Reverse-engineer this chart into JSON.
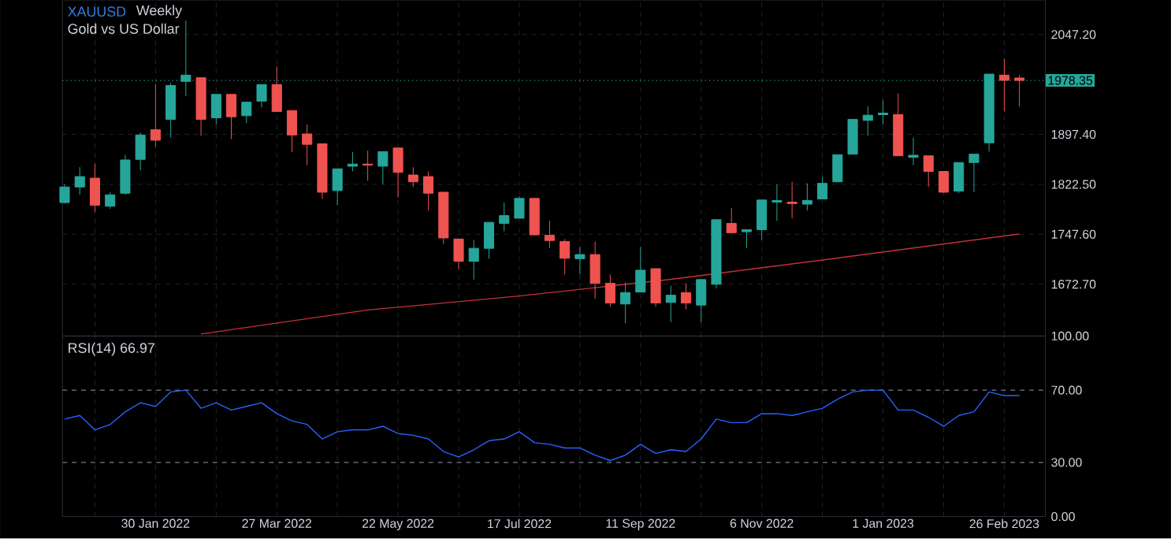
{
  "chart_data": [
    {
      "type": "candlestick",
      "title": "XAUUSD",
      "subtitle": "Gold vs US Dollar",
      "annotations": [
        "Weekly"
      ],
      "x": [
        "2021-12-19",
        "2021-12-26",
        "2022-01-02",
        "2022-01-09",
        "2022-01-16",
        "2022-01-23",
        "2022-01-30",
        "2022-02-06",
        "2022-02-13",
        "2022-02-20",
        "2022-02-27",
        "2022-03-06",
        "2022-03-13",
        "2022-03-20",
        "2022-03-27",
        "2022-04-03",
        "2022-04-10",
        "2022-04-17",
        "2022-04-24",
        "2022-05-01",
        "2022-05-08",
        "2022-05-15",
        "2022-05-22",
        "2022-05-29",
        "2022-06-05",
        "2022-06-12",
        "2022-06-19",
        "2022-06-26",
        "2022-07-03",
        "2022-07-10",
        "2022-07-17",
        "2022-07-24",
        "2022-07-31",
        "2022-08-07",
        "2022-08-14",
        "2022-08-21",
        "2022-08-28",
        "2022-09-04",
        "2022-09-11",
        "2022-09-18",
        "2022-09-25",
        "2022-10-02",
        "2022-10-09",
        "2022-10-16",
        "2022-10-23",
        "2022-10-30",
        "2022-11-06",
        "2022-11-13",
        "2022-11-20",
        "2022-11-27",
        "2022-12-04",
        "2022-12-11",
        "2022-12-18",
        "2022-12-25",
        "2023-01-01",
        "2023-01-08",
        "2023-01-15",
        "2023-01-22",
        "2023-01-29",
        "2023-02-05",
        "2023-02-12",
        "2023-02-19",
        "2023-02-26",
        "2023-03-05"
      ],
      "ohlc": [
        [
          1795.1,
          1822.4,
          1793.6,
          1818.5
        ],
        [
          1818.5,
          1848.2,
          1806.8,
          1834.1
        ],
        [
          1831.8,
          1853.6,
          1781.1,
          1791.2
        ],
        [
          1789.7,
          1810.7,
          1785.8,
          1806.8
        ],
        [
          1809.2,
          1866.9,
          1806.8,
          1859.1
        ],
        [
          1859.9,
          1900.4,
          1843.5,
          1896.5
        ],
        [
          1904.4,
          1973.0,
          1878.6,
          1888.7
        ],
        [
          1920.0,
          1974.6,
          1892.6,
          1970.7
        ],
        [
          1976.9,
          2068.2,
          1955.1,
          1986.3
        ],
        [
          1982.4,
          1982.4,
          1895.0,
          1920.0
        ],
        [
          1922.3,
          1957.4,
          1912.2,
          1957.4
        ],
        [
          1957.4,
          1957.4,
          1890.3,
          1923.9
        ],
        [
          1925.4,
          1945.7,
          1914.5,
          1945.7
        ],
        [
          1947.3,
          1972.2,
          1937.9,
          1972.2
        ],
        [
          1972.2,
          1999.5,
          1931.7,
          1931.7
        ],
        [
          1933.2,
          1933.2,
          1870.8,
          1896.5
        ],
        [
          1898.1,
          1912.2,
          1851.3,
          1882.5
        ],
        [
          1883.3,
          1883.3,
          1800.6,
          1810.7
        ],
        [
          1813.1,
          1845.8,
          1791.2,
          1845.8
        ],
        [
          1849.7,
          1870.8,
          1841.9,
          1852.9
        ],
        [
          1852.9,
          1873.1,
          1827.9,
          1851.3
        ],
        [
          1849.7,
          1871.6,
          1822.4,
          1871.6
        ],
        [
          1877.0,
          1877.0,
          1802.9,
          1840.4
        ],
        [
          1836.5,
          1848.2,
          1818.5,
          1826.3
        ],
        [
          1834.1,
          1841.9,
          1783.4,
          1809.2
        ],
        [
          1810.7,
          1810.7,
          1732.7,
          1742.1
        ],
        [
          1740.5,
          1740.5,
          1695.3,
          1707.0
        ],
        [
          1707.0,
          1739.0,
          1679.6,
          1726.5
        ],
        [
          1726.5,
          1765.5,
          1710.9,
          1765.5
        ],
        [
          1763.9,
          1795.1,
          1752.2,
          1775.6
        ],
        [
          1771.7,
          1804.5,
          1771.7,
          1801.4
        ],
        [
          1801.4,
          1801.4,
          1746.7,
          1746.7
        ],
        [
          1746.0,
          1767.8,
          1726.5,
          1738.2
        ],
        [
          1736.6,
          1740.5,
          1687.4,
          1711.6
        ],
        [
          1710.9,
          1728.8,
          1687.4,
          1717.1
        ],
        [
          1717.1,
          1736.6,
          1650.8,
          1674.2
        ],
        [
          1674.2,
          1687.4,
          1639.1,
          1644.5
        ],
        [
          1643.0,
          1675.7,
          1614.1,
          1660.1
        ],
        [
          1660.9,
          1728.8,
          1660.9,
          1693.7
        ],
        [
          1696.0,
          1696.0,
          1639.1,
          1644.5
        ],
        [
          1645.3,
          1670.3,
          1615.7,
          1656.2
        ],
        [
          1660.1,
          1674.2,
          1635.2,
          1644.5
        ],
        [
          1641.4,
          1679.6,
          1615.7,
          1679.6
        ],
        [
          1672.6,
          1769.4,
          1666.4,
          1769.4
        ],
        [
          1763.9,
          1787.3,
          1749.9,
          1749.9
        ],
        [
          1751.4,
          1754.5,
          1726.5,
          1754.5
        ],
        [
          1754.5,
          1799.0,
          1739.0,
          1799.0
        ],
        [
          1795.9,
          1822.4,
          1767.8,
          1798.2
        ],
        [
          1795.9,
          1826.3,
          1771.7,
          1793.6
        ],
        [
          1792.8,
          1824.0,
          1783.4,
          1798.2
        ],
        [
          1800.6,
          1834.1,
          1800.6,
          1824.0
        ],
        [
          1826.3,
          1866.9,
          1826.3,
          1866.9
        ],
        [
          1867.7,
          1920.0,
          1867.7,
          1920.0
        ],
        [
          1918.4,
          1939.5,
          1895.0,
          1926.2
        ],
        [
          1927.0,
          1948.8,
          1912.2,
          1929.3
        ],
        [
          1927.0,
          1959.0,
          1865.3,
          1865.3
        ],
        [
          1863.0,
          1892.6,
          1851.3,
          1866.1
        ],
        [
          1865.3,
          1865.3,
          1818.5,
          1841.9
        ],
        [
          1841.9,
          1841.9,
          1809.2,
          1810.7
        ],
        [
          1812.3,
          1855.2,
          1809.2,
          1855.2
        ],
        [
          1855.2,
          1867.7,
          1810.7,
          1867.7
        ],
        [
          1884.8,
          1987.8,
          1871.6,
          1987.8
        ],
        [
          1986.3,
          2011.2,
          1931.7,
          1978.5
        ],
        [
          1982.0,
          1986.3,
          1939.5,
          1978.35
        ]
      ],
      "colors": [
        "#26a69a",
        "#26a69a",
        "#ef5350",
        "#26a69a",
        "#26a69a",
        "#26a69a",
        "#ef5350",
        "#26a69a",
        "#26a69a",
        "#ef5350",
        "#26a69a",
        "#ef5350",
        "#26a69a",
        "#26a69a",
        "#ef5350",
        "#ef5350",
        "#ef5350",
        "#ef5350",
        "#26a69a",
        "#26a69a",
        "#ef5350",
        "#26a69a",
        "#ef5350",
        "#ef5350",
        "#ef5350",
        "#ef5350",
        "#ef5350",
        "#26a69a",
        "#26a69a",
        "#26a69a",
        "#26a69a",
        "#ef5350",
        "#ef5350",
        "#ef5350",
        "#26a69a",
        "#ef5350",
        "#ef5350",
        "#26a69a",
        "#26a69a",
        "#ef5350",
        "#26a69a",
        "#ef5350",
        "#26a69a",
        "#26a69a",
        "#ef5350",
        "#26a69a",
        "#26a69a",
        "#26a69a",
        "#ef5350",
        "#26a69a",
        "#26a69a",
        "#26a69a",
        "#26a69a",
        "#26a69a",
        "#26a69a",
        "#ef5350",
        "#26a69a",
        "#ef5350",
        "#ef5350",
        "#26a69a",
        "#26a69a",
        "#26a69a",
        "#ef5350",
        "#ef5350"
      ],
      "series": [
        {
          "type": "line",
          "color": "#c2303c",
          "x": [
            "2022-02-20",
            "2022-05-08",
            "2022-07-17",
            "2022-09-25",
            "2022-12-04",
            "2023-03-05"
          ],
          "values": [
            1598,
            1634,
            1655,
            1680,
            1709,
            1748
          ]
        }
      ],
      "ref_lines": [
        {
          "axis": "y",
          "value": 1978.35,
          "label": "1978.35",
          "color": "#26a69a",
          "line_style": "dotted"
        }
      ],
      "xlim": [
        "2021-12-18",
        "2023-03-17"
      ],
      "xticks": [
        {
          "value": "2022-01-02",
          "label": null
        },
        {
          "value": "2022-01-30",
          "label": null
        },
        {
          "value": "2022-02-27",
          "label": null
        },
        {
          "value": "2022-03-27",
          "label": null
        },
        {
          "value": "2022-04-24",
          "label": null
        },
        {
          "value": "2022-05-22",
          "label": null
        },
        {
          "value": "2022-06-19",
          "label": null
        },
        {
          "value": "2022-07-17",
          "label": null
        },
        {
          "value": "2022-08-14",
          "label": null
        },
        {
          "value": "2022-09-11",
          "label": null
        },
        {
          "value": "2022-10-09",
          "label": null
        },
        {
          "value": "2022-11-06",
          "label": null
        },
        {
          "value": "2022-12-04",
          "label": null
        },
        {
          "value": "2023-01-01",
          "label": null
        },
        {
          "value": "2023-01-29",
          "label": null
        },
        {
          "value": "2023-02-26",
          "label": null
        }
      ],
      "ylim": [
        1595,
        2099
      ],
      "yticks": [
        {
          "value": 1672.7,
          "label": "1672.70"
        },
        {
          "value": 1747.6,
          "label": "1747.60"
        },
        {
          "value": 1822.5,
          "label": "1822.50"
        },
        {
          "value": 1897.4,
          "label": "1897.40"
        },
        {
          "value": 2047.2,
          "label": "2047.20"
        }
      ],
      "grid": true,
      "tick_labels": "y"
    },
    {
      "type": "line",
      "title": "RSI(14) 66.97",
      "x": [
        "2021-12-19",
        "2021-12-26",
        "2022-01-02",
        "2022-01-09",
        "2022-01-16",
        "2022-01-23",
        "2022-01-30",
        "2022-02-06",
        "2022-02-13",
        "2022-02-20",
        "2022-02-27",
        "2022-03-06",
        "2022-03-13",
        "2022-03-20",
        "2022-03-27",
        "2022-04-03",
        "2022-04-10",
        "2022-04-17",
        "2022-04-24",
        "2022-05-01",
        "2022-05-08",
        "2022-05-15",
        "2022-05-22",
        "2022-05-29",
        "2022-06-05",
        "2022-06-12",
        "2022-06-19",
        "2022-06-26",
        "2022-07-03",
        "2022-07-10",
        "2022-07-17",
        "2022-07-24",
        "2022-07-31",
        "2022-08-07",
        "2022-08-14",
        "2022-08-21",
        "2022-08-28",
        "2022-09-04",
        "2022-09-11",
        "2022-09-18",
        "2022-09-25",
        "2022-10-02",
        "2022-10-09",
        "2022-10-16",
        "2022-10-23",
        "2022-10-30",
        "2022-11-06",
        "2022-11-13",
        "2022-11-20",
        "2022-11-27",
        "2022-12-04",
        "2022-12-11",
        "2022-12-18",
        "2022-12-25",
        "2023-01-01",
        "2023-01-08",
        "2023-01-15",
        "2023-01-22",
        "2023-01-29",
        "2023-02-05",
        "2023-02-12",
        "2023-02-19",
        "2023-02-26",
        "2023-03-05"
      ],
      "series": [
        {
          "color": "#2962ff",
          "values": [
            54,
            56,
            48,
            51,
            58,
            63,
            61,
            69,
            70,
            60,
            63,
            59,
            61,
            63,
            57,
            53,
            51,
            43,
            47,
            48,
            48,
            50,
            46,
            45,
            43,
            36,
            33,
            37,
            42,
            43,
            47,
            41,
            40,
            38,
            38,
            34,
            31,
            34,
            40,
            35,
            37,
            36,
            43,
            54,
            52,
            52,
            57,
            57,
            56,
            58,
            60,
            65,
            69,
            70,
            70,
            59,
            59,
            55,
            50,
            56,
            58,
            69,
            67,
            67
          ]
        }
      ],
      "ref_lines": [
        {
          "axis": "y",
          "value": 70,
          "color": "#787b86",
          "line_style": "dashed"
        },
        {
          "axis": "y",
          "value": 30,
          "color": "#787b86",
          "line_style": "dashed"
        }
      ],
      "xlim": [
        "2021-12-18",
        "2023-03-17"
      ],
      "xticks": [
        {
          "value": "2022-01-02",
          "label": null
        },
        {
          "value": "2022-01-30",
          "label": "30 Jan 2022"
        },
        {
          "value": "2022-02-27",
          "label": null
        },
        {
          "value": "2022-03-27",
          "label": "27 Mar 2022"
        },
        {
          "value": "2022-04-24",
          "label": null
        },
        {
          "value": "2022-05-22",
          "label": "22 May 2022"
        },
        {
          "value": "2022-06-19",
          "label": null
        },
        {
          "value": "2022-07-17",
          "label": "17 Jul 2022"
        },
        {
          "value": "2022-08-14",
          "label": null
        },
        {
          "value": "2022-09-11",
          "label": "11 Sep 2022"
        },
        {
          "value": "2022-10-09",
          "label": null
        },
        {
          "value": "2022-11-06",
          "label": "6 Nov 2022"
        },
        {
          "value": "2022-12-04",
          "label": null
        },
        {
          "value": "2023-01-01",
          "label": "1 Jan 2023"
        },
        {
          "value": "2023-01-29",
          "label": null
        },
        {
          "value": "2023-02-26",
          "label": "26 Feb 2023"
        }
      ],
      "ylim": [
        0,
        100
      ],
      "yticks": [
        {
          "value": 0,
          "label": "0.00"
        },
        {
          "value": 30,
          "label": "30.00"
        },
        {
          "value": 70,
          "label": "70.00"
        },
        {
          "value": 100,
          "label": "100.00"
        }
      ],
      "grid": "x"
    }
  ]
}
